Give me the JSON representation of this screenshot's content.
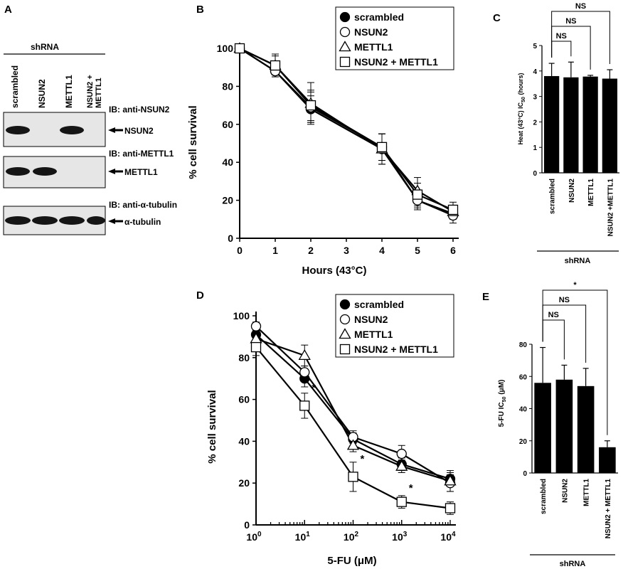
{
  "panel_letters": {
    "A": "A",
    "B": "B",
    "C": "C",
    "D": "D",
    "E": "E"
  },
  "western_blot": {
    "shrna_label": "shRNA",
    "lanes": [
      "scrambled",
      "NSUN2",
      "METTL1"
    ],
    "lane4_lines": [
      "NSUN2 +",
      "METTL1"
    ],
    "blots": [
      {
        "ib_label": "IB: anti-NSUN2",
        "band_label": "NSUN2",
        "bands": [
          1,
          0,
          1,
          0
        ]
      },
      {
        "ib_label": "IB: anti-METTL1",
        "band_label": "METTL1",
        "bands": [
          1,
          1,
          0,
          0
        ]
      },
      {
        "ib_label": "IB: anti-α-tubulin",
        "band_label": "α-tubulin",
        "bands": [
          1,
          1,
          1,
          1
        ]
      }
    ]
  },
  "chart_data": [
    {
      "panel": "B",
      "type": "line",
      "xlabel": "Hours (43°C)",
      "ylabel": "% cell survival",
      "xlim": [
        0,
        6
      ],
      "ylim": [
        0,
        100
      ],
      "xticks": [
        0,
        1,
        2,
        3,
        4,
        5,
        6
      ],
      "yticks": [
        0,
        20,
        40,
        60,
        80,
        100
      ],
      "legend_position": "top-right",
      "x": [
        0,
        1,
        2,
        4,
        5,
        6
      ],
      "series": [
        {
          "name": "scrambled",
          "marker": "filled-circle",
          "values": [
            100,
            88,
            68,
            47,
            20,
            13
          ],
          "errors": [
            1,
            2,
            7,
            8,
            4,
            3
          ]
        },
        {
          "name": "NSUN2",
          "marker": "open-circle",
          "values": [
            100,
            88,
            69,
            48,
            20,
            12
          ],
          "errors": [
            1,
            3,
            8,
            7,
            5,
            4
          ]
        },
        {
          "name": "METTL1",
          "marker": "open-triangle",
          "values": [
            100,
            91,
            71,
            47,
            25,
            14
          ],
          "errors": [
            1,
            5,
            11,
            8,
            7,
            3
          ]
        },
        {
          "name": "NSUN2 + METTL1",
          "marker": "open-square",
          "values": [
            100,
            91,
            70,
            48,
            23,
            15
          ],
          "errors": [
            1,
            6,
            8,
            7,
            6,
            4
          ]
        }
      ]
    },
    {
      "panel": "C",
      "type": "bar",
      "ylabel_parts": [
        "Heat (43°C) IC",
        "50",
        " (hours)"
      ],
      "ylim": [
        0,
        5
      ],
      "yticks": [
        0,
        1,
        2,
        3,
        4,
        5
      ],
      "categories": [
        "scrambled",
        "NSUN2",
        "METTL1",
        "NSUN2 +METTL1"
      ],
      "values": [
        3.8,
        3.75,
        3.78,
        3.7
      ],
      "errors": [
        0.5,
        0.6,
        0.05,
        0.35
      ],
      "group_label": "shRNA",
      "significance": [
        {
          "from": 0,
          "to": 1,
          "label": "NS"
        },
        {
          "from": 0,
          "to": 2,
          "label": "NS"
        },
        {
          "from": 0,
          "to": 3,
          "label": "NS"
        }
      ]
    },
    {
      "panel": "D",
      "type": "line",
      "xscale": "log",
      "xlabel": "5-FU (μM)",
      "ylabel": "% cell survival",
      "xlim": [
        1,
        10000
      ],
      "ylim": [
        0,
        100
      ],
      "xticks_exponents": [
        "0",
        "1",
        "2",
        "3",
        "4"
      ],
      "yticks": [
        0,
        20,
        40,
        60,
        80,
        100
      ],
      "legend_position": "top-right",
      "x": [
        1,
        10,
        100,
        1000,
        10000
      ],
      "series": [
        {
          "name": "scrambled",
          "marker": "filled-circle",
          "values": [
            91,
            70,
            41,
            29,
            22
          ],
          "errors": [
            3,
            4,
            3,
            3,
            3
          ]
        },
        {
          "name": "NSUN2",
          "marker": "open-circle",
          "values": [
            95,
            73,
            42,
            34,
            20
          ],
          "errors": [
            2,
            3,
            3,
            4,
            4
          ]
        },
        {
          "name": "METTL1",
          "marker": "open-triangle",
          "values": [
            89,
            81,
            38,
            28,
            21
          ],
          "errors": [
            3,
            5,
            3,
            3,
            5
          ]
        },
        {
          "name": "NSUN2 + METTL1",
          "marker": "open-square",
          "values": [
            85,
            57,
            23,
            11,
            8
          ],
          "errors": [
            4,
            6,
            7,
            3,
            3
          ]
        }
      ],
      "annotations": [
        {
          "x": 10,
          "y": 64,
          "text": "*"
        },
        {
          "x": 100,
          "y": 30,
          "text": "*"
        },
        {
          "x": 1000,
          "y": 16,
          "text": "*"
        }
      ]
    },
    {
      "panel": "E",
      "type": "bar",
      "ylabel_parts": [
        "5-FU IC",
        "50",
        " (μM)"
      ],
      "ylim": [
        0,
        80
      ],
      "yticks": [
        0,
        20,
        40,
        60,
        80
      ],
      "categories": [
        "scrambled",
        "NSUN2",
        "METTL1",
        "NSUN2 + METTL1"
      ],
      "values": [
        56,
        58,
        54,
        16
      ],
      "errors": [
        22,
        9,
        11,
        4
      ],
      "group_label": "shRNA",
      "significance": [
        {
          "from": 0,
          "to": 1,
          "label": "NS"
        },
        {
          "from": 0,
          "to": 2,
          "label": "NS"
        },
        {
          "from": 0,
          "to": 3,
          "label": "*"
        }
      ]
    }
  ]
}
